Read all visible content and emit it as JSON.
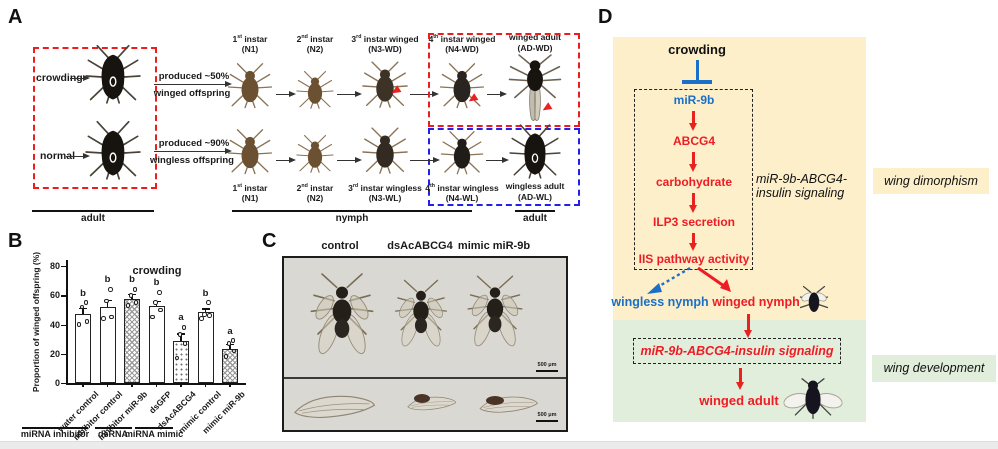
{
  "panel_a": {
    "label": "A",
    "conditions": [
      {
        "name": "crowding",
        "produced_top": "produced ~50%",
        "produced_bottom": "winged offspring"
      },
      {
        "name": "normal",
        "produced_top": "produced ~90%",
        "produced_bottom": "wingless offspring"
      }
    ],
    "adult_left_label": "adult",
    "top_row": [
      {
        "num": "1",
        "ord": "st",
        "rest": " instar",
        "code": "(N1)"
      },
      {
        "num": "2",
        "ord": "nd",
        "rest": " instar",
        "code": "(N2)"
      },
      {
        "num": "3",
        "ord": "rd",
        "rest": " instar winged",
        "code": "(N3-WD)"
      },
      {
        "num": "4",
        "ord": "th",
        "rest": " instar winged",
        "code": "(N4-WD)"
      },
      {
        "num": "",
        "ord": "",
        "rest": "winged adult",
        "code": "(AD-WD)"
      }
    ],
    "bottom_row": [
      {
        "num": "1",
        "ord": "st",
        "rest": " instar",
        "code": "(N1)"
      },
      {
        "num": "2",
        "ord": "nd",
        "rest": " instar",
        "code": "(N2)"
      },
      {
        "num": "3",
        "ord": "rd",
        "rest": " instar wingless",
        "code": "(N3-WL)"
      },
      {
        "num": "4",
        "ord": "th",
        "rest": " instar wingless",
        "code": "(N4-WL)"
      },
      {
        "num": "",
        "ord": "",
        "rest": "wingless adult",
        "code": "(AD-WL)"
      }
    ],
    "nymph_label": "nymph",
    "adult_right_label": "adult"
  },
  "panel_b": {
    "label": "B"
  },
  "chart_data": {
    "type": "bar",
    "title": "crowding",
    "ylabel": "Proportion of winged offspring (%)",
    "ylim": [
      0,
      80
    ],
    "yticks": [
      0,
      20,
      40,
      60,
      80
    ],
    "categories": [
      "water control",
      "inhibitor control",
      "inhibitor miR-9b",
      "dsGFP",
      "dsAcABCG4",
      "mimic control",
      "mimic miR-9b"
    ],
    "values": [
      47,
      52,
      57.5,
      52.5,
      29,
      48.5,
      23.5
    ],
    "errors": [
      4.5,
      5,
      3.5,
      3.5,
      5,
      2.5,
      3.5
    ],
    "sig_letters": [
      "b",
      "b",
      "b",
      "b",
      "a",
      "b",
      "a"
    ],
    "patterns": [
      "plain",
      "plain",
      "checker",
      "plain",
      "dots",
      "plain",
      "checker"
    ],
    "points": [
      [
        40,
        42,
        52,
        55
      ],
      [
        44,
        45,
        56,
        64
      ],
      [
        53,
        55,
        60,
        64
      ],
      [
        45,
        50,
        55,
        62
      ],
      [
        17,
        27,
        33,
        38
      ],
      [
        44,
        46,
        47,
        55
      ],
      [
        18,
        22,
        27,
        29
      ]
    ],
    "groups": [
      {
        "label": "miRNA inhibitor",
        "span": [
          0,
          2
        ]
      },
      {
        "label": "dsRNA",
        "span": [
          3,
          4
        ]
      },
      {
        "label": "miRNA mimic",
        "span": [
          5,
          6
        ]
      }
    ],
    "legend_position": "none",
    "grid": false
  },
  "panel_c": {
    "label": "C",
    "columns": [
      "control",
      "dsAcABCG4",
      "mimic miR-9b"
    ],
    "scale_bar_top": "500 μm",
    "scale_bar_bottom": "500 μm"
  },
  "panel_d": {
    "label": "D",
    "input": "crowding",
    "mirna": "miR-9b",
    "node_abcg4": "ABCG4",
    "node_carb": "carbohydrate",
    "node_ilp3": "ILP3 secretion",
    "node_iis": "IIS pathway activity",
    "pathway_line1": "miR-9b-ABCG4-",
    "pathway_line2": "insulin signaling",
    "wingless_nymph": "wingless nymph",
    "winged_nymph": "winged nymph",
    "dev_pathway": "miR-9b-ABCG4-insulin signaling",
    "winged_adult": "winged adult",
    "side_top": "wing dimorphism",
    "side_bottom": "wing development",
    "colors": {
      "beige": "#fcefc9",
      "green": "#e1eedb",
      "blue": "#1b6fc8",
      "red": "#ee1c25",
      "red_box": "#ee1c1c",
      "blue_box": "#2020e8"
    }
  }
}
